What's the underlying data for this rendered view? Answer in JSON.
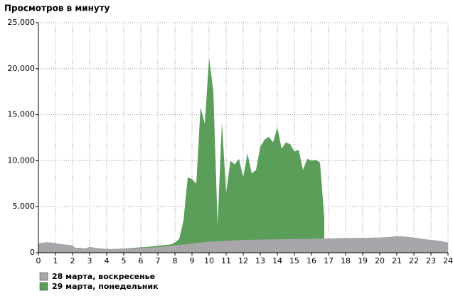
{
  "chart_data": {
    "type": "area",
    "title": "Просмотров в минуту",
    "x": [
      0,
      0.25,
      0.5,
      0.75,
      1,
      1.25,
      1.5,
      1.75,
      2,
      2.25,
      2.5,
      2.75,
      3,
      3.25,
      3.5,
      3.75,
      4,
      4.25,
      4.5,
      4.75,
      5,
      5.25,
      5.5,
      5.75,
      6,
      6.25,
      6.5,
      6.75,
      7,
      7.25,
      7.5,
      7.75,
      8,
      8.25,
      8.5,
      8.75,
      9,
      9.25,
      9.5,
      9.75,
      10,
      10.25,
      10.5,
      10.75,
      11,
      11.25,
      11.5,
      11.75,
      12,
      12.25,
      12.5,
      12.75,
      13,
      13.25,
      13.5,
      13.75,
      14,
      14.25,
      14.5,
      14.75,
      15,
      15.25,
      15.5,
      15.75,
      16,
      16.25,
      16.5,
      16.75,
      17,
      17.25,
      17.5,
      17.75,
      18,
      18.25,
      18.5,
      18.75,
      19,
      19.25,
      19.5,
      19.75,
      20,
      20.25,
      20.5,
      20.75,
      21,
      21.25,
      21.5,
      21.75,
      22,
      22.25,
      22.5,
      22.75,
      23,
      23.25,
      23.5,
      23.75,
      24
    ],
    "series": [
      {
        "name": "29 марта, понедельник",
        "color": "#5a9e5a",
        "values": [
          700,
          700,
          650,
          600,
          600,
          550,
          500,
          500,
          500,
          500,
          480,
          450,
          400,
          380,
          350,
          350,
          350,
          380,
          400,
          420,
          450,
          480,
          520,
          550,
          600,
          620,
          650,
          700,
          750,
          800,
          850,
          900,
          1100,
          1500,
          3500,
          8200,
          8000,
          7500,
          15800,
          14000,
          21200,
          17500,
          3000,
          14200,
          6500,
          10000,
          9600,
          10200,
          8200,
          10800,
          8600,
          9000,
          11500,
          12300,
          12600,
          12000,
          13600,
          11300,
          12000,
          11800,
          11000,
          11200,
          9000,
          10200,
          10000,
          10100,
          9800,
          3800,
          null,
          null,
          null,
          null,
          null,
          null,
          null,
          null,
          null,
          null,
          null,
          null,
          null,
          null,
          null,
          null,
          null,
          null,
          null,
          null,
          null,
          null,
          null,
          null,
          null,
          null,
          null,
          null,
          null
        ]
      },
      {
        "name": "28 марта, воскресенье",
        "color": "#a8a6ab",
        "values": [
          1000,
          1100,
          1150,
          1100,
          1050,
          950,
          900,
          850,
          800,
          420,
          400,
          450,
          650,
          550,
          500,
          450,
          420,
          400,
          420,
          430,
          440,
          450,
          450,
          480,
          500,
          520,
          550,
          580,
          600,
          650,
          700,
          750,
          800,
          850,
          900,
          950,
          1000,
          1050,
          1100,
          1150,
          1200,
          1220,
          1250,
          1270,
          1300,
          1320,
          1340,
          1360,
          1380,
          1400,
          1400,
          1420,
          1420,
          1430,
          1440,
          1450,
          1450,
          1460,
          1470,
          1480,
          1480,
          1490,
          1500,
          1500,
          1500,
          1510,
          1520,
          1540,
          1550,
          1560,
          1580,
          1600,
          1600,
          1600,
          1600,
          1620,
          1620,
          1620,
          1640,
          1650,
          1650,
          1680,
          1700,
          1750,
          1800,
          1780,
          1750,
          1700,
          1650,
          1580,
          1500,
          1450,
          1400,
          1350,
          1300,
          1200,
          1100
        ]
      }
    ],
    "xlim": [
      0,
      24
    ],
    "xticks": [
      0,
      1,
      2,
      3,
      4,
      5,
      6,
      7,
      8,
      9,
      10,
      11,
      12,
      13,
      14,
      15,
      16,
      17,
      18,
      19,
      20,
      21,
      22,
      23,
      24
    ],
    "ylim": [
      0,
      25000
    ],
    "yticks": [
      0,
      {
        "value": 5000,
        "label": "5,000"
      },
      {
        "value": 10000,
        "label": "10,000"
      },
      {
        "value": 15000,
        "label": "15,000"
      },
      {
        "value": 20000,
        "label": "20,000"
      },
      {
        "value": 25000,
        "label": "25,000"
      }
    ],
    "grid": true,
    "legend": "bottom-left"
  }
}
